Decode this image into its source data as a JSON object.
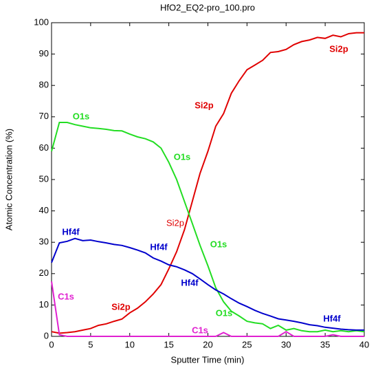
{
  "chart_data": {
    "type": "line",
    "title": "HfO2_EQ2-pro_100.pro",
    "x_label": "Sputter Time (min)",
    "y_label": "Atomic Concentration (%)",
    "x": [
      0,
      1,
      2,
      3,
      4,
      5,
      6,
      7,
      8,
      9,
      10,
      11,
      12,
      13,
      14,
      15,
      16,
      17,
      18,
      19,
      20,
      21,
      22,
      23,
      24,
      25,
      26,
      27,
      28,
      29,
      30,
      31,
      32,
      33,
      34,
      35,
      36,
      37,
      38,
      39,
      40
    ],
    "xlim": [
      0,
      40
    ],
    "xticks": [
      0,
      5,
      10,
      15,
      20,
      25,
      30,
      35,
      40
    ],
    "ylim": [
      0,
      100
    ],
    "yticks": [
      0,
      10,
      20,
      30,
      40,
      50,
      60,
      70,
      80,
      90,
      100
    ],
    "series": [
      {
        "name": "Si2p",
        "color": "#e00000",
        "values": [
          1.5,
          1,
          1.2,
          1.5,
          2,
          2.5,
          3.5,
          4,
          4.8,
          5.5,
          7.5,
          9,
          11,
          13.5,
          16.5,
          21.5,
          27,
          34,
          43,
          52,
          59,
          67,
          71,
          77.5,
          81.5,
          85,
          86.5,
          88,
          90.5,
          90.8,
          91.5,
          93,
          94,
          94.5,
          95.3,
          95,
          96,
          95.5,
          96.5,
          96.8,
          96.8
        ]
      },
      {
        "name": "O1s",
        "color": "#22dd22",
        "values": [
          59,
          68.2,
          68.2,
          67.5,
          67,
          66.5,
          66.3,
          66,
          65.6,
          65.5,
          64.5,
          63.6,
          63,
          62,
          60,
          55.5,
          50,
          43,
          36,
          29,
          22.5,
          15.5,
          11,
          8,
          6.5,
          4.8,
          4.3,
          4,
          2.5,
          3.5,
          2,
          2.5,
          1.8,
          1.5,
          1.5,
          2,
          1.5,
          1.8,
          1.5,
          1.8,
          1.5
        ]
      },
      {
        "name": "Hf4f",
        "color": "#0000cc",
        "values": [
          23.5,
          29.8,
          30.3,
          31.2,
          30.5,
          30.7,
          30.2,
          29.8,
          29.3,
          29,
          28.3,
          27.5,
          26.6,
          25,
          24,
          22.8,
          22.2,
          21.2,
          20,
          18.3,
          16.5,
          14.8,
          13.5,
          12,
          10.6,
          9.5,
          8.3,
          7.3,
          6.5,
          5.6,
          5.2,
          4.8,
          4.3,
          3.7,
          3.4,
          2.9,
          2.6,
          2.3,
          2.1,
          2,
          2
        ]
      },
      {
        "name": "C1s",
        "color": "#e020d0",
        "values": [
          17.5,
          0.5,
          0,
          0,
          0,
          0,
          0,
          0,
          0,
          0,
          0,
          0,
          0,
          0,
          0,
          0,
          0,
          0,
          0,
          0,
          0,
          0,
          1.2,
          0,
          0,
          0,
          0,
          0,
          0,
          0,
          1.5,
          0,
          0,
          0,
          0,
          0,
          0.5,
          0,
          0,
          0,
          0
        ]
      }
    ],
    "annotations": [
      "O1s",
      "Si2p",
      "Si2p",
      "O1s",
      "Si2p",
      "O1s",
      "Hf4f",
      "Hf4f",
      "Hf4f",
      "Hf4f",
      "C1s",
      "C1s",
      "Si2p",
      "O1s"
    ]
  }
}
